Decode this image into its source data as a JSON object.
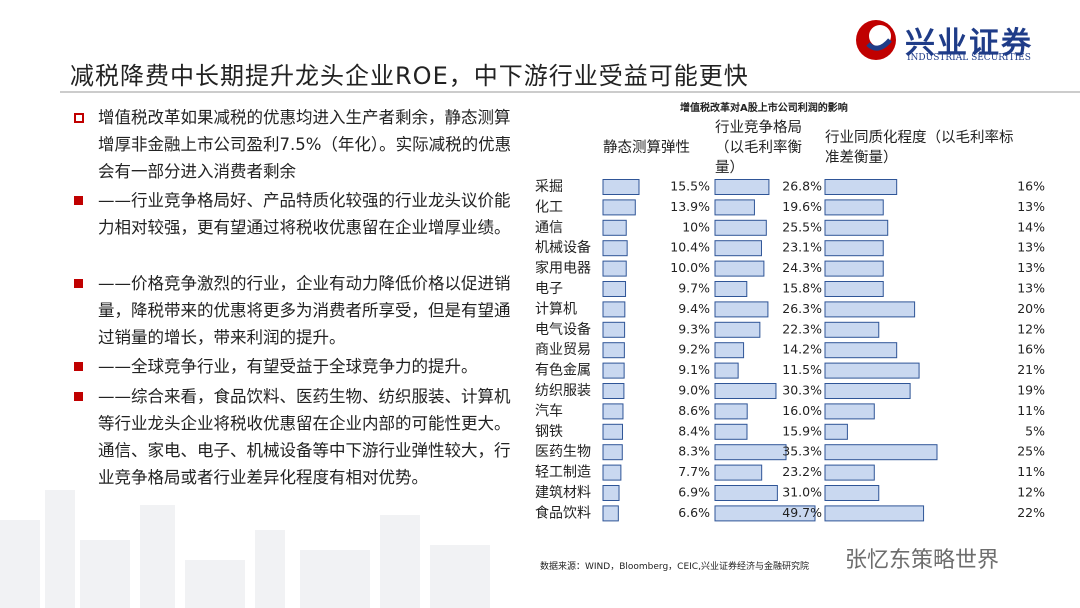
{
  "header": {
    "title": "减税降费中长期提升龙头企业ROE，中下游行业受益可能更快",
    "logo": "兴业证券",
    "logo_sub": "INDUSTRIAL SECURITIES"
  },
  "bullets": [
    "增值税改革如果减税的优惠均进入生产者剩余，静态测算增厚非金融上市公司盈利7.5%（年化）。实际减税的优惠会有一部分进入消费者剩余",
    "——行业竞争格局好、产品特质化较强的行业龙头议价能力相对较强，更有望通过将税收优惠留在企业增厚业绩。",
    "——价格竞争激烈的行业，企业有动力降低价格以促进销量，降税带来的优惠将更多为消费者所享受，但是有望通过销量的增长，带来利润的提升。",
    "——全球竞争行业，有望受益于全球竞争力的提升。",
    "——综合来看，食品饮料、医药生物、纺织服装、计算机等行业龙头企业将税收优惠留在企业内部的可能性更大。通信、家电、电子、机械设备等中下游行业弹性较大，行业竞争格局或者行业差异化程度有相对优势。"
  ],
  "chart_data": {
    "type": "bar",
    "title": "增值税改革对A股上市公司利润的影响",
    "categories": [
      "采掘",
      "化工",
      "通信",
      "机械设备",
      "家用电器",
      "电子",
      "计算机",
      "电气设备",
      "商业贸易",
      "有色金属",
      "纺织服装",
      "汽车",
      "钢铁",
      "医药生物",
      "轻工制造",
      "建筑材料",
      "食品饮料"
    ],
    "series": [
      {
        "name": "静态测算弹性",
        "color": "#c9d8f0",
        "values": [
          15.5,
          13.9,
          10,
          10.4,
          10.0,
          9.7,
          9.4,
          9.3,
          9.2,
          9.1,
          9.0,
          8.6,
          8.4,
          8.3,
          7.7,
          6.9,
          6.6
        ],
        "value_labels": [
          "15.5%",
          "13.9%",
          "10%",
          "10.4%",
          "10.0%",
          "9.7%",
          "9.4%",
          "9.3%",
          "9.2%",
          "9.1%",
          "9.0%",
          "8.6%",
          "8.4%",
          "8.3%",
          "7.7%",
          "6.9%",
          "6.6%"
        ]
      },
      {
        "name": "行业竞争格局（以毛利率衡量）",
        "color": "#c9d8f0",
        "values": [
          26.8,
          19.6,
          25.5,
          23.1,
          24.3,
          15.8,
          26.3,
          22.3,
          14.2,
          11.5,
          30.3,
          16.0,
          15.9,
          35.3,
          23.2,
          31.0,
          49.7
        ],
        "value_labels": [
          "26.8%",
          "19.6%",
          "25.5%",
          "23.1%",
          "24.3%",
          "15.8%",
          "26.3%",
          "22.3%",
          "14.2%",
          "11.5%",
          "30.3%",
          "16.0%",
          "15.9%",
          "35.3%",
          "23.2%",
          "31.0%",
          "49.7%"
        ]
      },
      {
        "name": "行业同质化程度（以毛利率标准差衡量）",
        "color": "#c9d8f0",
        "values": [
          16,
          13,
          14,
          13,
          13,
          13,
          20,
          12,
          16,
          21,
          19,
          11,
          5,
          25,
          11,
          12,
          22
        ],
        "value_labels": [
          "16%",
          "13%",
          "14%",
          "13%",
          "13%",
          "13%",
          "20%",
          "12%",
          "16%",
          "21%",
          "19%",
          "11%",
          "5%",
          "25%",
          "11%",
          "12%",
          "22%"
        ]
      }
    ],
    "source": "数据来源：WIND，Bloomberg，CEIC,兴业证券经济与金融研究院"
  },
  "watermark": "张忆东策略世界"
}
